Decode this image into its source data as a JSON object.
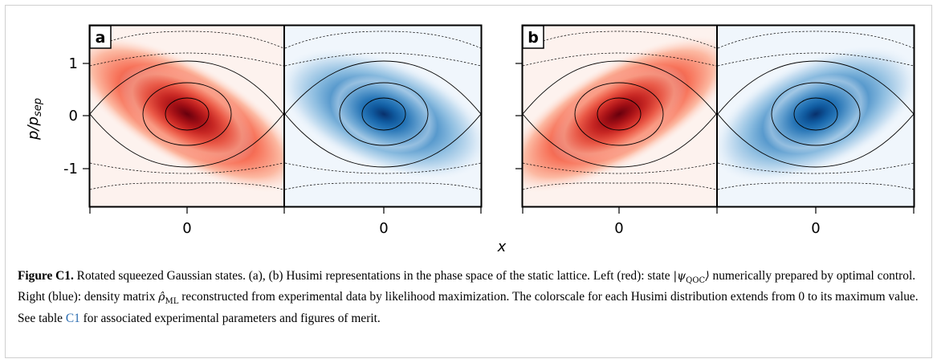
{
  "figure": {
    "panels": [
      {
        "letter": "a",
        "halves": [
          "red",
          "blue"
        ]
      },
      {
        "letter": "b",
        "halves": [
          "red",
          "blue"
        ]
      }
    ],
    "ylabel_main": "p/p",
    "ylabel_sub": "sep",
    "xlabel": "x",
    "y_ticks": [
      "1",
      "0",
      "-1"
    ],
    "x_tick": "0",
    "colors": {
      "red": "#b2141b",
      "blue": "#0c4f96"
    }
  },
  "caption": {
    "label": "Figure C1.",
    "part1": " Rotated squeezed Gaussian states. (a), (b) Husimi representations in the phase space of the static lattice. Left (red): state ",
    "psi": "|ψ",
    "psi_sub": "QOC",
    "psi_close": "⟩",
    "part2": " numerically prepared by optimal control. Right (blue): density matrix ",
    "rho": "ρ̂",
    "rho_sub": "ML",
    "part3": " reconstructed from experimental data by likelihood maximization. The colorscale for each Husimi distribution extends from 0 to its maximum value. See table ",
    "table_ref": "C1",
    "part4": " for associated experimental parameters and figures of merit."
  }
}
